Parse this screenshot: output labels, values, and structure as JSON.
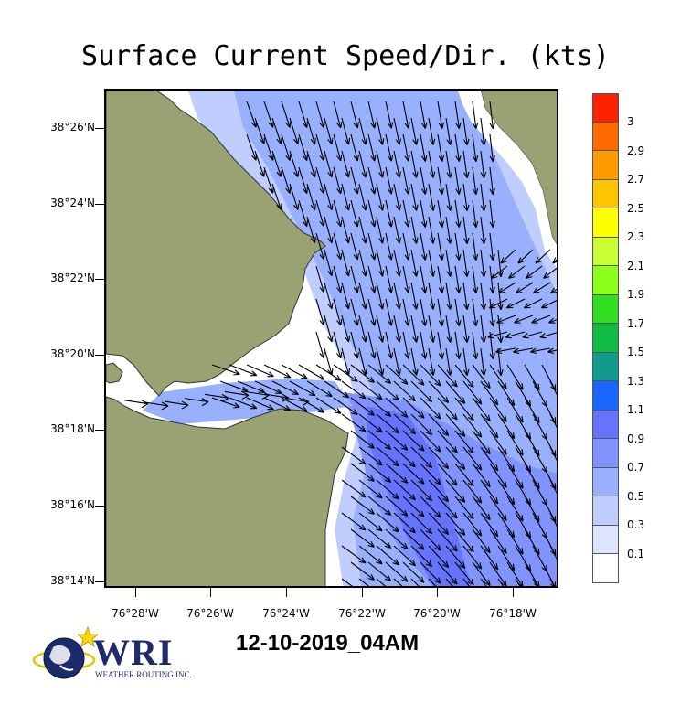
{
  "title": "Surface Current Speed/Dir. (kts)",
  "date_label": "12-10-2019_04AM",
  "logo": {
    "text": "WRI",
    "subtext": "WEATHER ROUTING INC."
  },
  "y_ticks": [
    "38°26'N",
    "38°24'N",
    "38°22'N",
    "38°20'N",
    "38°18'N",
    "38°16'N",
    "38°14'N"
  ],
  "x_ticks": [
    "76°28'W",
    "76°26'W",
    "76°24'W",
    "76°22'W",
    "76°20'W",
    "76°18'W"
  ],
  "legend": {
    "labels": [
      "3",
      "2.9",
      "2.7",
      "2.5",
      "2.3",
      "2.1",
      "1.9",
      "1.7",
      "1.5",
      "1.3",
      "1.1",
      "0.9",
      "0.7",
      "0.5",
      "0.3",
      "0.1"
    ],
    "colors": [
      "#ff2200",
      "#ff6a00",
      "#ff9a00",
      "#ffc400",
      "#ffff00",
      "#c8ff33",
      "#8cff1a",
      "#33dd22",
      "#11bb44",
      "#11998a",
      "#1a66ff",
      "#6673ff",
      "#8093ff",
      "#99b0ff",
      "#bfcdff",
      "#dde4ff",
      "#ffffff"
    ]
  },
  "colors": {
    "land": "#98a273",
    "water_white": "#ffffff",
    "arrow": "#000000"
  }
}
